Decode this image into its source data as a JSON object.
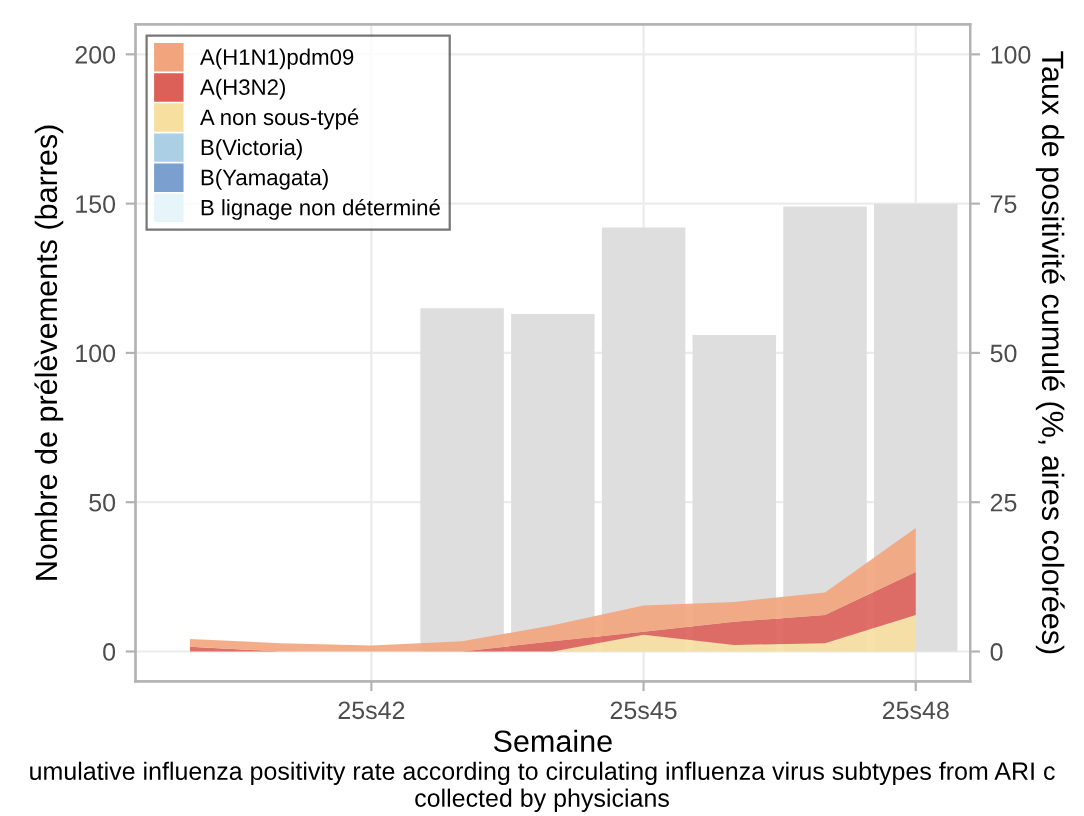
{
  "chart_data": {
    "type": "bar",
    "xlabel": "Semaine",
    "ylabel": "Nombre de prélèvements (barres)",
    "y2label": "Taux de positivité cumulé (%, aires colorées)",
    "categories": [
      null,
      null,
      "25s42",
      null,
      null,
      "25s45",
      null,
      null,
      "25s48"
    ],
    "series": [
      {
        "color": "#dedede",
        "values": [
          null,
          null,
          null,
          115,
          113,
          142,
          106,
          149,
          150
        ]
      },
      {
        "type": "area",
        "axis": "y2",
        "name": "B lignage non déterminé",
        "color": "#e6f5fa",
        "values": [
          null,
          null,
          null,
          null,
          null,
          null,
          null,
          null,
          null
        ]
      },
      {
        "type": "area",
        "axis": "y2",
        "name": "B(Yamagata)",
        "color": "#7b9fcf",
        "values": [
          null,
          null,
          null,
          null,
          null,
          null,
          null,
          null,
          null
        ]
      },
      {
        "type": "area",
        "axis": "y2",
        "name": "B(Victoria)",
        "color": "#abd0e6",
        "values": [
          null,
          null,
          null,
          null,
          null,
          null,
          null,
          null,
          null
        ]
      },
      {
        "type": "area",
        "axis": "y2",
        "name": "A non sous-typé",
        "color": "#f7dfa0",
        "values": [
          0,
          0,
          0,
          0,
          0,
          2.8,
          1.1,
          1.4,
          6.1
        ]
      },
      {
        "type": "area",
        "axis": "y2",
        "name": "A(H3N2)",
        "color": "#dc5f58",
        "values": [
          0.8,
          0,
          0,
          0,
          1.7,
          0.5,
          3.9,
          4.7,
          7.2
        ]
      },
      {
        "type": "area",
        "axis": "y2",
        "name": "A(H1N1)pdm09",
        "color": "#f2a47c",
        "values": [
          1.3,
          1.4,
          1.0,
          1.7,
          2.7,
          4.4,
          3.3,
          3.8,
          7.4
        ]
      }
    ],
    "stacked": true,
    "ylim": [
      -10,
      210
    ],
    "yticks": [
      0,
      50,
      100,
      150,
      200
    ],
    "y2lim": [
      -5,
      105
    ],
    "y2ticks": [
      0,
      25,
      50,
      75,
      100
    ],
    "grid": true,
    "legend": "top left",
    "annotations": [
      "umulative influenza positivity rate according to circulating influenza virus subtypes from ARI c\ncollected by physicians"
    ]
  }
}
